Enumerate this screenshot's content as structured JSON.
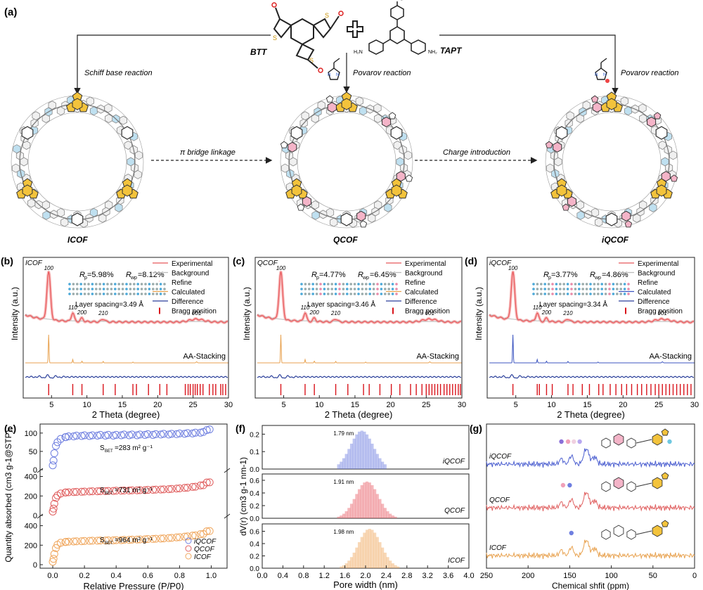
{
  "panel_a": {
    "label": "(a)",
    "monomer_btt": "BTT",
    "monomer_tapt": "TAPT",
    "plus": "+",
    "schiff": "Schiff base reaction",
    "povarov1": "Povarov reaction",
    "povarov2": "Povarov reaction",
    "pi_bridge": "π bridge linkage",
    "charge": "Charge introduction",
    "name_icof": "ICOF",
    "name_qcof": "QCOF",
    "name_iqcof": "iQCOF"
  },
  "xrd_common": {
    "xlabel": "2 Theta (degree)",
    "ylabel": "Intensity (a.u.)",
    "xticks": [
      "5",
      "10",
      "15",
      "20",
      "25",
      "30"
    ],
    "legend": [
      "Experimental",
      "Background",
      "Refine",
      "Calculated",
      "Difference",
      "Bragg position"
    ],
    "stacking": "AA-Stacking",
    "colors": {
      "experimental": "#e8575a",
      "refine": "#f4a0a0",
      "background": "#bcbcbc",
      "difference": "#2a3f9a",
      "bragg": "#d9141b"
    }
  },
  "chart_data": [
    {
      "type": "line",
      "panel": "(b)",
      "title": "ICOF",
      "calc_color": "#e8a250",
      "rp": "5.98%",
      "rwp": "8.12%",
      "layer_spacing": "Layer spacing=3.49 Å",
      "peaks": [
        {
          "x": 4.6,
          "label": "100"
        },
        {
          "x": 8.0,
          "label": "110"
        },
        {
          "x": 9.3,
          "label": "200"
        },
        {
          "x": 12.3,
          "label": "210"
        },
        {
          "x": 25.5,
          "label": "001"
        }
      ],
      "xlim": [
        1,
        30
      ],
      "bragg": [
        4.6,
        8.0,
        9.3,
        12.3,
        14.0,
        16.5,
        17.0,
        18.7,
        20.3,
        21.3,
        23.9,
        24.3,
        24.6,
        25.0,
        25.3,
        25.6,
        26.0,
        26.4,
        27.3,
        27.8,
        28.2,
        28.9,
        29.2,
        29.6
      ]
    },
    {
      "type": "line",
      "panel": "(c)",
      "title": "QCOF",
      "calc_color": "#e8a250",
      "rp": "4.77%",
      "rwp": "6.45%",
      "layer_spacing": "Layer spacing=3.46 Å",
      "peaks": [
        {
          "x": 4.6,
          "label": "100"
        },
        {
          "x": 8.0,
          "label": "110"
        },
        {
          "x": 9.3,
          "label": "200"
        },
        {
          "x": 12.3,
          "label": "210"
        },
        {
          "x": 25.5,
          "label": "001"
        }
      ],
      "xlim": [
        1,
        30
      ],
      "bragg": [
        4.6,
        8.0,
        9.3,
        12.3,
        14.0,
        16.2,
        17.0,
        18.5,
        20.1,
        21.3,
        22.8,
        23.6,
        24.4,
        25.0,
        25.4,
        25.8,
        26.2,
        26.6,
        27.0,
        27.5,
        27.9,
        28.3,
        28.7,
        29.1,
        29.5,
        29.8
      ]
    },
    {
      "type": "line",
      "panel": "(d)",
      "title": "iQCOF",
      "calc_color": "#3c55c0",
      "rp": "3.77%",
      "rwp": "4.86%",
      "layer_spacing": "Layer spacing=3.34 Å",
      "peaks": [
        {
          "x": 4.6,
          "label": "100"
        },
        {
          "x": 8.0,
          "label": "110"
        },
        {
          "x": 9.3,
          "label": "200"
        },
        {
          "x": 12.3,
          "label": "210"
        },
        {
          "x": 25.5,
          "label": "001"
        }
      ],
      "xlim": [
        1,
        30
      ],
      "bragg": [
        4.6,
        8.0,
        8.3,
        9.3,
        10.1,
        12.3,
        13.0,
        14.3,
        15.3,
        16.6,
        17.2,
        18.2,
        19.0,
        19.8,
        20.5,
        21.2,
        22.0,
        22.6,
        23.3,
        23.9,
        24.5,
        25.0,
        25.5,
        26.0,
        26.5,
        27.0,
        27.5,
        28.0,
        28.5,
        29.0,
        29.5
      ]
    },
    {
      "type": "scatter",
      "panel": "(e)",
      "xlabel": "Relative Pressure (P/P0)",
      "ylabel": "Quantity absorbed (cm3 g-1@STP)",
      "xticks": [
        "0.0",
        "0.2",
        "0.4",
        "0.6",
        "0.8",
        "1.0"
      ],
      "legend": [
        "iQCOF",
        "QCOF",
        "ICOF"
      ],
      "series": [
        {
          "name": "iQCOF",
          "color": "#6f7fe0",
          "bet": "283",
          "yticks": [
            "0",
            "50",
            "100"
          ],
          "ymax": 115,
          "x": [
            0.0,
            0.005,
            0.01,
            0.02,
            0.03,
            0.05,
            0.08,
            0.1,
            0.15,
            0.2,
            0.25,
            0.3,
            0.35,
            0.4,
            0.45,
            0.5,
            0.55,
            0.6,
            0.65,
            0.7,
            0.75,
            0.8,
            0.85,
            0.9,
            0.95,
            0.99
          ],
          "y": [
            12,
            25,
            45,
            65,
            75,
            84,
            89,
            91,
            93,
            94,
            94,
            95,
            95,
            95,
            96,
            96,
            96,
            97,
            97,
            98,
            98,
            99,
            100,
            101,
            103,
            110
          ]
        },
        {
          "name": "QCOF",
          "color": "#e06060",
          "bet": "731",
          "yticks": [
            "0",
            "200",
            "400"
          ],
          "ymax": 440,
          "x": [
            0.0,
            0.005,
            0.01,
            0.02,
            0.03,
            0.05,
            0.08,
            0.1,
            0.15,
            0.2,
            0.25,
            0.3,
            0.35,
            0.4,
            0.45,
            0.5,
            0.55,
            0.6,
            0.65,
            0.7,
            0.75,
            0.8,
            0.85,
            0.9,
            0.95,
            0.99
          ],
          "y": [
            40,
            70,
            120,
            180,
            205,
            225,
            235,
            238,
            242,
            245,
            248,
            250,
            252,
            254,
            256,
            258,
            260,
            262,
            265,
            268,
            272,
            278,
            285,
            295,
            310,
            340
          ]
        },
        {
          "name": "ICOF",
          "color": "#f0a860",
          "bet": "964",
          "yticks": [
            "0",
            "200",
            "400"
          ],
          "ymax": 440,
          "x": [
            0.0,
            0.005,
            0.01,
            0.02,
            0.03,
            0.05,
            0.08,
            0.1,
            0.15,
            0.2,
            0.25,
            0.3,
            0.35,
            0.4,
            0.45,
            0.5,
            0.55,
            0.6,
            0.65,
            0.7,
            0.75,
            0.8,
            0.85,
            0.9,
            0.95,
            0.99
          ],
          "y": [
            30,
            60,
            110,
            170,
            205,
            225,
            232,
            236,
            240,
            243,
            246,
            248,
            250,
            252,
            254,
            257,
            260,
            263,
            266,
            270,
            275,
            282,
            290,
            300,
            315,
            345
          ]
        }
      ]
    },
    {
      "type": "bar",
      "panel": "(f)",
      "xlabel": "Pore width (nm)",
      "ylabel": "dV(r) (cm3 g-1 nm-1)",
      "xticks": [
        "0.0",
        "0.4",
        "0.8",
        "1.2",
        "1.6",
        "2.0",
        "2.4",
        "2.8",
        "3.2",
        "3.6",
        "4.0"
      ],
      "series": [
        {
          "name": "iQCOF",
          "color": "#6f7fe0",
          "peak": "1.79 nm",
          "center": 1.9,
          "ymax_val": 0.25,
          "ytop": 0.22,
          "yticks": [
            "0.0",
            "0.1",
            "0.2"
          ]
        },
        {
          "name": "QCOF",
          "color": "#e86068",
          "peak": "1.91 nm",
          "center": 2.0,
          "ymax_val": 0.7,
          "ytop": 0.58,
          "yticks": [
            "0.0",
            "0.2",
            "0.4",
            "0.6"
          ]
        },
        {
          "name": "ICOF",
          "color": "#f0a860",
          "peak": "1.98 nm",
          "center": 2.05,
          "ymax_val": 0.72,
          "ytop": 0.64,
          "yticks": [
            "0.0",
            "0.2",
            "0.4",
            "0.6"
          ]
        }
      ]
    },
    {
      "type": "line",
      "panel": "(g)",
      "xlabel": "Chemical shfit (ppm)",
      "xticks": [
        "250",
        "200",
        "150",
        "100",
        "50",
        "0"
      ],
      "series": [
        {
          "name": "iQCOF",
          "color": "#4c5fd0"
        },
        {
          "name": "QCOF",
          "color": "#e06060"
        },
        {
          "name": "ICOF",
          "color": "#e8a250"
        }
      ]
    }
  ]
}
